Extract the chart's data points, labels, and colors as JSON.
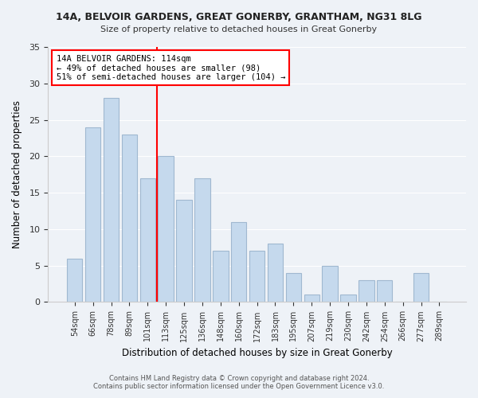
{
  "title1": "14A, BELVOIR GARDENS, GREAT GONERBY, GRANTHAM, NG31 8LG",
  "title2": "Size of property relative to detached houses in Great Gonerby",
  "xlabel": "Distribution of detached houses by size in Great Gonerby",
  "ylabel": "Number of detached properties",
  "categories": [
    "54sqm",
    "66sqm",
    "78sqm",
    "89sqm",
    "101sqm",
    "113sqm",
    "125sqm",
    "136sqm",
    "148sqm",
    "160sqm",
    "172sqm",
    "183sqm",
    "195sqm",
    "207sqm",
    "219sqm",
    "230sqm",
    "242sqm",
    "254sqm",
    "266sqm",
    "277sqm",
    "289sqm"
  ],
  "values": [
    6,
    24,
    28,
    23,
    17,
    20,
    14,
    17,
    7,
    11,
    7,
    8,
    4,
    1,
    5,
    1,
    3,
    3,
    0,
    4,
    0
  ],
  "bar_color": "#c5d9ed",
  "bar_edge_color": "#a0b8d0",
  "vline_x": 4.5,
  "marker_label": "14A BELVOIR GARDENS: 114sqm",
  "annotation_line1": "← 49% of detached houses are smaller (98)",
  "annotation_line2": "51% of semi-detached houses are larger (104) →",
  "vline_color": "red",
  "box_color": "white",
  "box_edge_color": "red",
  "ylim": [
    0,
    35
  ],
  "yticks": [
    0,
    5,
    10,
    15,
    20,
    25,
    30,
    35
  ],
  "footer1": "Contains HM Land Registry data © Crown copyright and database right 2024.",
  "footer2": "Contains public sector information licensed under the Open Government Licence v3.0.",
  "bg_color": "#eef2f7"
}
